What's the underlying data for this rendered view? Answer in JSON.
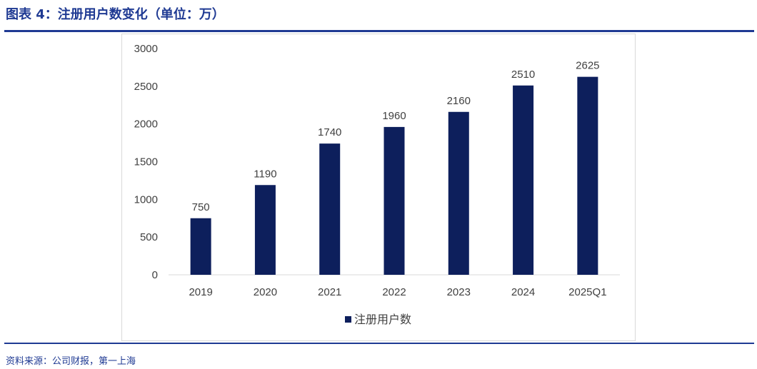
{
  "header": {
    "title": "图表 4：注册用户数变化（单位：万）"
  },
  "footer": {
    "source": "资料来源：公司财报，第一上海"
  },
  "chart_data": {
    "type": "bar",
    "title": "",
    "xlabel": "",
    "ylabel": "",
    "categories": [
      "2019",
      "2020",
      "2021",
      "2022",
      "2023",
      "2024",
      "2025Q1"
    ],
    "series": [
      {
        "name": "注册用户数",
        "values": [
          750,
          1190,
          1740,
          1960,
          2160,
          2510,
          2625
        ]
      }
    ],
    "ylim": [
      0,
      3000
    ],
    "yticks": [
      0,
      500,
      1000,
      1500,
      2000,
      2500,
      3000
    ],
    "data_labels": true,
    "grid": false,
    "legend_position": "bottom",
    "colors": {
      "bar": "#0d1f5c",
      "axis_text": "#404040",
      "title": "#1f3a93"
    }
  }
}
